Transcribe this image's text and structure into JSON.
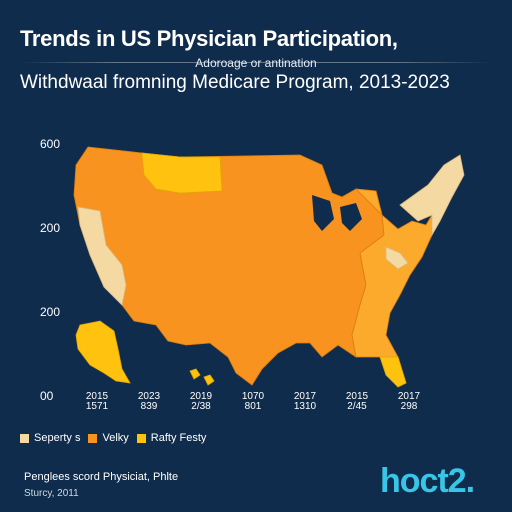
{
  "title": "Trends in US Physician Participation,",
  "small_subtitle": "Adoroage or antination",
  "subtitle": "Withdwaal fromning Medicare Program, 2013-2023",
  "y_ticks": [
    "600",
    "200",
    "200",
    "00"
  ],
  "x_labels": [
    {
      "year": "2015",
      "value": "1571"
    },
    {
      "year": "2023",
      "value": "839"
    },
    {
      "year": "2019",
      "value": "2/38"
    },
    {
      "year": "1070",
      "value": "801"
    },
    {
      "year": "2017",
      "value": "1310"
    },
    {
      "year": "2015",
      "value": "2/45"
    },
    {
      "year": "2017",
      "value": "298"
    }
  ],
  "legend": [
    {
      "label": "Seperty s",
      "color": "#f5d9a3"
    },
    {
      "label": "Velky",
      "color": "#f7931e"
    },
    {
      "label": "Rafty Festy",
      "color": "#ffc20e"
    }
  ],
  "colors": {
    "background": "#0f2c4c",
    "dark_orange": "#f7931e",
    "mid_orange": "#fbaa2c",
    "yellow": "#ffc20e",
    "light": "#f5d9a3",
    "brand": "#38c6e8"
  },
  "source_line1": "Penglees scord Physiciat, Phlte",
  "source_line2": "Sturcy, 2011",
  "brand": "hoct2."
}
